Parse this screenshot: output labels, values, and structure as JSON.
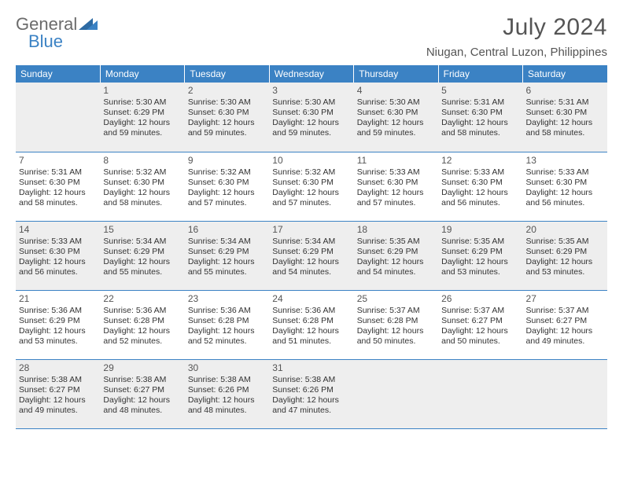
{
  "logo": {
    "text1": "General",
    "text2": "Blue"
  },
  "title": "July 2024",
  "location": "Niugan, Central Luzon, Philippines",
  "colors": {
    "header_bg": "#3b82c4",
    "header_text": "#ffffff",
    "logo_gray": "#6b6b6b",
    "logo_blue": "#3b82c4",
    "title_color": "#555555",
    "row_alt_bg": "#eeeeee",
    "border": "#3b82c4"
  },
  "typography": {
    "title_fontsize": 30,
    "location_fontsize": 15,
    "dayheader_fontsize": 12,
    "cell_fontsize": 10.5
  },
  "day_headers": [
    "Sunday",
    "Monday",
    "Tuesday",
    "Wednesday",
    "Thursday",
    "Friday",
    "Saturday"
  ],
  "weeks": [
    {
      "alt": true,
      "cells": [
        null,
        {
          "n": "1",
          "sr": "Sunrise: 5:30 AM",
          "ss": "Sunset: 6:29 PM",
          "d1": "Daylight: 12 hours",
          "d2": "and 59 minutes."
        },
        {
          "n": "2",
          "sr": "Sunrise: 5:30 AM",
          "ss": "Sunset: 6:30 PM",
          "d1": "Daylight: 12 hours",
          "d2": "and 59 minutes."
        },
        {
          "n": "3",
          "sr": "Sunrise: 5:30 AM",
          "ss": "Sunset: 6:30 PM",
          "d1": "Daylight: 12 hours",
          "d2": "and 59 minutes."
        },
        {
          "n": "4",
          "sr": "Sunrise: 5:30 AM",
          "ss": "Sunset: 6:30 PM",
          "d1": "Daylight: 12 hours",
          "d2": "and 59 minutes."
        },
        {
          "n": "5",
          "sr": "Sunrise: 5:31 AM",
          "ss": "Sunset: 6:30 PM",
          "d1": "Daylight: 12 hours",
          "d2": "and 58 minutes."
        },
        {
          "n": "6",
          "sr": "Sunrise: 5:31 AM",
          "ss": "Sunset: 6:30 PM",
          "d1": "Daylight: 12 hours",
          "d2": "and 58 minutes."
        }
      ]
    },
    {
      "alt": false,
      "cells": [
        {
          "n": "7",
          "sr": "Sunrise: 5:31 AM",
          "ss": "Sunset: 6:30 PM",
          "d1": "Daylight: 12 hours",
          "d2": "and 58 minutes."
        },
        {
          "n": "8",
          "sr": "Sunrise: 5:32 AM",
          "ss": "Sunset: 6:30 PM",
          "d1": "Daylight: 12 hours",
          "d2": "and 58 minutes."
        },
        {
          "n": "9",
          "sr": "Sunrise: 5:32 AM",
          "ss": "Sunset: 6:30 PM",
          "d1": "Daylight: 12 hours",
          "d2": "and 57 minutes."
        },
        {
          "n": "10",
          "sr": "Sunrise: 5:32 AM",
          "ss": "Sunset: 6:30 PM",
          "d1": "Daylight: 12 hours",
          "d2": "and 57 minutes."
        },
        {
          "n": "11",
          "sr": "Sunrise: 5:33 AM",
          "ss": "Sunset: 6:30 PM",
          "d1": "Daylight: 12 hours",
          "d2": "and 57 minutes."
        },
        {
          "n": "12",
          "sr": "Sunrise: 5:33 AM",
          "ss": "Sunset: 6:30 PM",
          "d1": "Daylight: 12 hours",
          "d2": "and 56 minutes."
        },
        {
          "n": "13",
          "sr": "Sunrise: 5:33 AM",
          "ss": "Sunset: 6:30 PM",
          "d1": "Daylight: 12 hours",
          "d2": "and 56 minutes."
        }
      ]
    },
    {
      "alt": true,
      "cells": [
        {
          "n": "14",
          "sr": "Sunrise: 5:33 AM",
          "ss": "Sunset: 6:30 PM",
          "d1": "Daylight: 12 hours",
          "d2": "and 56 minutes."
        },
        {
          "n": "15",
          "sr": "Sunrise: 5:34 AM",
          "ss": "Sunset: 6:29 PM",
          "d1": "Daylight: 12 hours",
          "d2": "and 55 minutes."
        },
        {
          "n": "16",
          "sr": "Sunrise: 5:34 AM",
          "ss": "Sunset: 6:29 PM",
          "d1": "Daylight: 12 hours",
          "d2": "and 55 minutes."
        },
        {
          "n": "17",
          "sr": "Sunrise: 5:34 AM",
          "ss": "Sunset: 6:29 PM",
          "d1": "Daylight: 12 hours",
          "d2": "and 54 minutes."
        },
        {
          "n": "18",
          "sr": "Sunrise: 5:35 AM",
          "ss": "Sunset: 6:29 PM",
          "d1": "Daylight: 12 hours",
          "d2": "and 54 minutes."
        },
        {
          "n": "19",
          "sr": "Sunrise: 5:35 AM",
          "ss": "Sunset: 6:29 PM",
          "d1": "Daylight: 12 hours",
          "d2": "and 53 minutes."
        },
        {
          "n": "20",
          "sr": "Sunrise: 5:35 AM",
          "ss": "Sunset: 6:29 PM",
          "d1": "Daylight: 12 hours",
          "d2": "and 53 minutes."
        }
      ]
    },
    {
      "alt": false,
      "cells": [
        {
          "n": "21",
          "sr": "Sunrise: 5:36 AM",
          "ss": "Sunset: 6:29 PM",
          "d1": "Daylight: 12 hours",
          "d2": "and 53 minutes."
        },
        {
          "n": "22",
          "sr": "Sunrise: 5:36 AM",
          "ss": "Sunset: 6:28 PM",
          "d1": "Daylight: 12 hours",
          "d2": "and 52 minutes."
        },
        {
          "n": "23",
          "sr": "Sunrise: 5:36 AM",
          "ss": "Sunset: 6:28 PM",
          "d1": "Daylight: 12 hours",
          "d2": "and 52 minutes."
        },
        {
          "n": "24",
          "sr": "Sunrise: 5:36 AM",
          "ss": "Sunset: 6:28 PM",
          "d1": "Daylight: 12 hours",
          "d2": "and 51 minutes."
        },
        {
          "n": "25",
          "sr": "Sunrise: 5:37 AM",
          "ss": "Sunset: 6:28 PM",
          "d1": "Daylight: 12 hours",
          "d2": "and 50 minutes."
        },
        {
          "n": "26",
          "sr": "Sunrise: 5:37 AM",
          "ss": "Sunset: 6:27 PM",
          "d1": "Daylight: 12 hours",
          "d2": "and 50 minutes."
        },
        {
          "n": "27",
          "sr": "Sunrise: 5:37 AM",
          "ss": "Sunset: 6:27 PM",
          "d1": "Daylight: 12 hours",
          "d2": "and 49 minutes."
        }
      ]
    },
    {
      "alt": true,
      "cells": [
        {
          "n": "28",
          "sr": "Sunrise: 5:38 AM",
          "ss": "Sunset: 6:27 PM",
          "d1": "Daylight: 12 hours",
          "d2": "and 49 minutes."
        },
        {
          "n": "29",
          "sr": "Sunrise: 5:38 AM",
          "ss": "Sunset: 6:27 PM",
          "d1": "Daylight: 12 hours",
          "d2": "and 48 minutes."
        },
        {
          "n": "30",
          "sr": "Sunrise: 5:38 AM",
          "ss": "Sunset: 6:26 PM",
          "d1": "Daylight: 12 hours",
          "d2": "and 48 minutes."
        },
        {
          "n": "31",
          "sr": "Sunrise: 5:38 AM",
          "ss": "Sunset: 6:26 PM",
          "d1": "Daylight: 12 hours",
          "d2": "and 47 minutes."
        },
        null,
        null,
        null
      ]
    }
  ]
}
